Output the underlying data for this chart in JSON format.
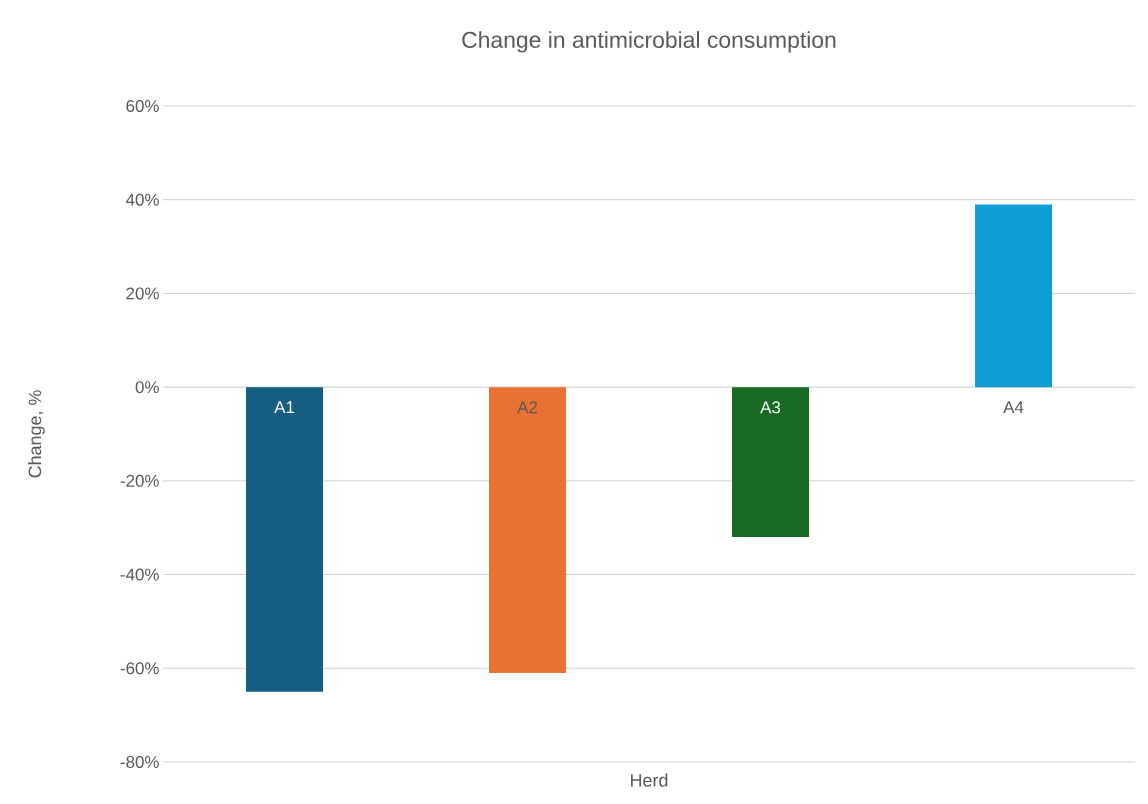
{
  "chart_data": {
    "type": "bar",
    "title": "Change in antimicrobial consumption",
    "xlabel": "Herd",
    "ylabel": "Change, %",
    "categories": [
      "A1",
      "A2",
      "A3",
      "A4"
    ],
    "values": [
      -65,
      -61,
      -32,
      39
    ],
    "colors": [
      "#156082",
      "#e97132",
      "#196b24",
      "#0f9ed5"
    ],
    "ylim": [
      -80,
      60
    ],
    "yticks": [
      {
        "value": -80,
        "label": "-80%"
      },
      {
        "value": -60,
        "label": "-60%"
      },
      {
        "value": -40,
        "label": "-40%"
      },
      {
        "value": -20,
        "label": "-20%"
      },
      {
        "value": 0,
        "label": "0%"
      },
      {
        "value": 20,
        "label": "20%"
      },
      {
        "value": 40,
        "label": "40%"
      },
      {
        "value": 60,
        "label": "60%"
      }
    ],
    "grid": "y"
  }
}
